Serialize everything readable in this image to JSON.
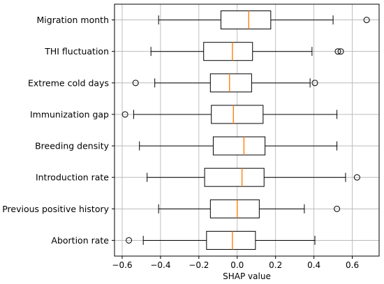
{
  "chart_data": {
    "type": "boxplot",
    "orientation": "horizontal",
    "xlabel": "SHAP value",
    "xlim": [
      -0.64,
      0.74
    ],
    "xticks": [
      -0.6,
      -0.4,
      -0.2,
      0.0,
      0.2,
      0.4,
      0.6
    ],
    "xtick_labels": [
      "−0.6",
      "−0.4",
      "−0.2",
      "0.0",
      "0.2",
      "0.4",
      "0.6"
    ],
    "grid": true,
    "colors": {
      "box_edge": "#000000",
      "median": "#ff7f0e",
      "grid": "#b0b0b0"
    },
    "categories": [
      {
        "label": "Migration month",
        "whislo": -0.41,
        "q1": -0.085,
        "med": 0.06,
        "q3": 0.175,
        "whishi": 0.5,
        "fliers": [
          0.675
        ]
      },
      {
        "label": "THI fluctuation",
        "whislo": -0.45,
        "q1": -0.175,
        "med": -0.025,
        "q3": 0.08,
        "whishi": 0.39,
        "fliers": [
          0.525,
          0.54
        ]
      },
      {
        "label": "Extreme cold days",
        "whislo": -0.43,
        "q1": -0.14,
        "med": -0.04,
        "q3": 0.075,
        "whishi": 0.38,
        "fliers": [
          -0.53,
          0.405
        ]
      },
      {
        "label": "Immunization gap",
        "whislo": -0.54,
        "q1": -0.135,
        "med": -0.02,
        "q3": 0.135,
        "whishi": 0.52,
        "fliers": [
          -0.585
        ]
      },
      {
        "label": "Breeding density",
        "whislo": -0.51,
        "q1": -0.125,
        "med": 0.035,
        "q3": 0.145,
        "whishi": 0.52,
        "fliers": []
      },
      {
        "label": "Introduction rate",
        "whislo": -0.47,
        "q1": -0.17,
        "med": 0.025,
        "q3": 0.14,
        "whishi": 0.565,
        "fliers": [
          0.625
        ]
      },
      {
        "label": "Previous positive history",
        "whislo": -0.41,
        "q1": -0.14,
        "med": 0.0,
        "q3": 0.115,
        "whishi": 0.35,
        "fliers": [
          0.52
        ]
      },
      {
        "label": "Abortion rate",
        "whislo": -0.49,
        "q1": -0.16,
        "med": -0.025,
        "q3": 0.095,
        "whishi": 0.405,
        "fliers": [
          -0.565
        ]
      }
    ]
  }
}
